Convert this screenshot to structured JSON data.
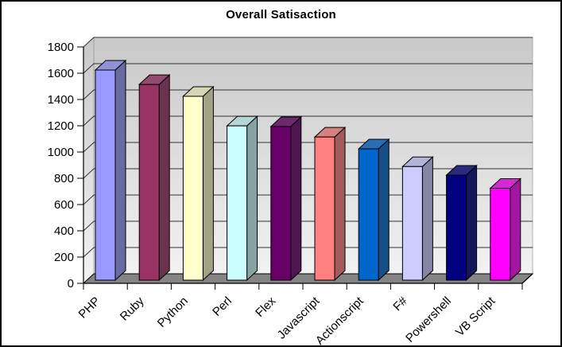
{
  "chart_data": {
    "type": "bar",
    "style": "3d-column",
    "title": "Overall Satisaction",
    "categories": [
      "PHP",
      "Ruby",
      "Python",
      "Perl",
      "Flex",
      "Javascript",
      "Actionscript",
      "F#",
      "Powershell",
      "VB Script"
    ],
    "values": [
      1600,
      1490,
      1400,
      1175,
      1170,
      1090,
      1000,
      865,
      800,
      700
    ],
    "bar_colors": [
      "#9999FF",
      "#993366",
      "#FFFFCC",
      "#CCFFFF",
      "#660066",
      "#FF8080",
      "#0066CC",
      "#CCCCFF",
      "#000080",
      "#FF00FF"
    ],
    "ylim": [
      0,
      1800
    ],
    "ytick_step": 200,
    "ytick_labels": [
      "0",
      "200",
      "400",
      "600",
      "800",
      "1000",
      "1200",
      "1400",
      "1600",
      "1800"
    ],
    "xlabel": "",
    "ylabel": "",
    "grid": true,
    "legend": "none",
    "colors": {
      "background": "#FFFFFF",
      "border": "#000000",
      "text": "#000000",
      "grid": "#333333",
      "outline": "#000000",
      "wall_top": "#C8C8C8",
      "wall_bottom": "#F2F2F2",
      "floor": "#848484"
    }
  }
}
